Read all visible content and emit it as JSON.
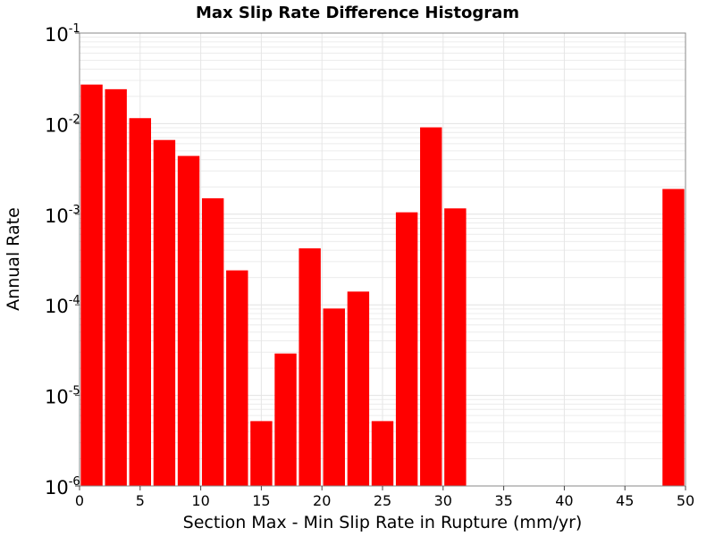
{
  "chart_data": {
    "type": "bar",
    "title": "Max Slip Rate Difference Histogram",
    "xlabel": "Section Max - Min Slip Rate in Rupture (mm/yr)",
    "ylabel": "Annual Rate",
    "xlim": [
      0,
      50
    ],
    "ylim": [
      1e-06,
      0.1
    ],
    "yscale": "log",
    "grid": true,
    "bar_color": "#ff0000",
    "x_ticks": [
      "0",
      "5",
      "10",
      "15",
      "20",
      "25",
      "30",
      "35",
      "40",
      "45",
      "50"
    ],
    "y_ticks": [
      {
        "base": "10",
        "exp": "-6"
      },
      {
        "base": "10",
        "exp": "-5"
      },
      {
        "base": "10",
        "exp": "-4"
      },
      {
        "base": "10",
        "exp": "-3"
      },
      {
        "base": "10",
        "exp": "-2"
      },
      {
        "base": "10",
        "exp": "-1"
      }
    ],
    "bin_width": 2,
    "bars": [
      {
        "x": 1,
        "value": 0.027
      },
      {
        "x": 3,
        "value": 0.024
      },
      {
        "x": 5,
        "value": 0.0115
      },
      {
        "x": 7,
        "value": 0.0066
      },
      {
        "x": 9,
        "value": 0.0044
      },
      {
        "x": 11,
        "value": 0.0015
      },
      {
        "x": 13,
        "value": 0.00024
      },
      {
        "x": 15,
        "value": 5.2e-06
      },
      {
        "x": 17,
        "value": 2.9e-05
      },
      {
        "x": 19,
        "value": 0.00042
      },
      {
        "x": 21,
        "value": 9.1e-05
      },
      {
        "x": 23,
        "value": 0.00014
      },
      {
        "x": 25,
        "value": 5.2e-06
      },
      {
        "x": 27,
        "value": 0.00105
      },
      {
        "x": 29,
        "value": 0.0091
      },
      {
        "x": 31,
        "value": 0.00116
      },
      {
        "x": 49,
        "value": 0.0019
      }
    ]
  }
}
